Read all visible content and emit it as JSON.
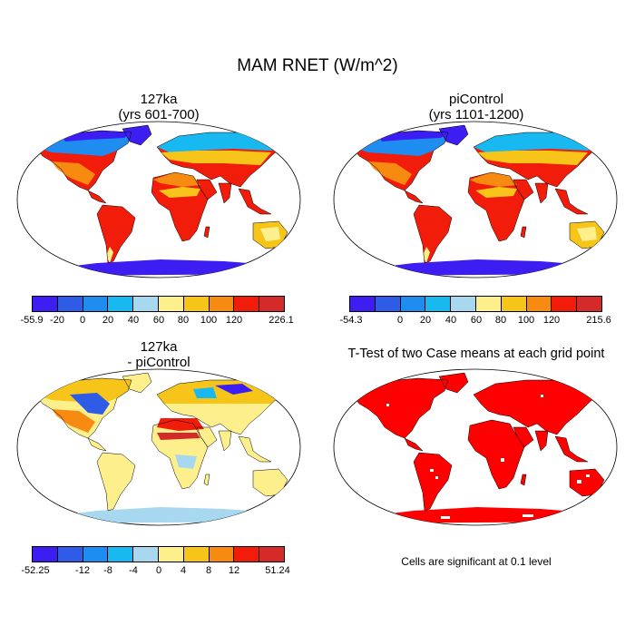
{
  "title": "MAM RNET (W/m^2)",
  "panels": {
    "top_left": {
      "title_line1": "127ka",
      "title_line2": "(yrs 601-700)"
    },
    "top_right": {
      "title_line1": "piControl",
      "title_line2": "(yrs 1101-1200)"
    },
    "bottom_left": {
      "title_line1": "127ka",
      "title_line2": "- piControl"
    },
    "bottom_right": {
      "title_line1": "T-Test of two Case means at each grid point"
    }
  },
  "colorbars": {
    "cb1": {
      "colors": [
        "#3c1ef2",
        "#2f5ce6",
        "#1f8cf0",
        "#18b8f0",
        "#a8d7f0",
        "#fdf08c",
        "#f7c419",
        "#f78b12",
        "#f21c0a",
        "#d52a2a"
      ],
      "labels": [
        "-55.9",
        "-20",
        "0",
        "20",
        "40",
        "60",
        "80",
        "100",
        "120",
        "226.1"
      ]
    },
    "cb2": {
      "colors": [
        "#3c1ef2",
        "#2f5ce6",
        "#1f8cf0",
        "#18b8f0",
        "#a8d7f0",
        "#fdf08c",
        "#f7c419",
        "#f78b12",
        "#f21c0a",
        "#d52a2a"
      ],
      "labels": [
        "-54.3",
        "0",
        "20",
        "40",
        "60",
        "80",
        "100",
        "120",
        "215.6"
      ]
    },
    "cb3": {
      "colors": [
        "#3c1ef2",
        "#2f5ce6",
        "#1f8cf0",
        "#18b8f0",
        "#a8d7f0",
        "#fdf08c",
        "#f7c419",
        "#f78b12",
        "#f21c0a",
        "#d52a2a"
      ],
      "labels": [
        "-52.25",
        "-12",
        "-8",
        "-4",
        "0",
        "4",
        "8",
        "12",
        "51.24"
      ]
    }
  },
  "significance_note": "Cells are significant at 0.1 level"
}
